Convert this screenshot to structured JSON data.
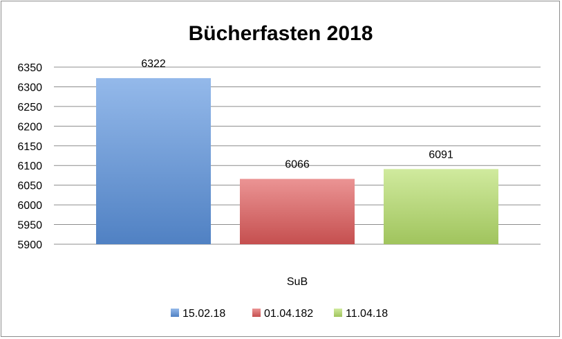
{
  "chart_data": {
    "type": "bar",
    "title": "Bücherfasten 2018",
    "categories": [
      "SuB"
    ],
    "series": [
      {
        "name": "15.02.18",
        "values": [
          6322
        ],
        "color": "#5b93de"
      },
      {
        "name": "01.04.182",
        "values": [
          6066
        ],
        "color": "#e05a5a"
      },
      {
        "name": "11.04.18",
        "values": [
          6091
        ],
        "color": "#b6df6a"
      }
    ],
    "ylim": [
      5900,
      6350
    ],
    "yticks": [
      5900,
      5950,
      6000,
      6050,
      6100,
      6150,
      6200,
      6250,
      6300,
      6350
    ],
    "grid": true,
    "legend": "bottom",
    "xlabel": "",
    "ylabel": ""
  }
}
